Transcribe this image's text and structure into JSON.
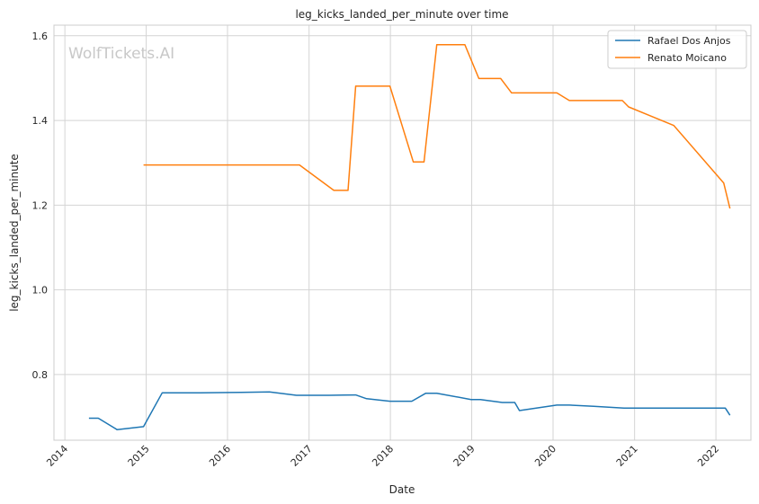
{
  "chart_data": {
    "type": "line",
    "title": "leg_kicks_landed_per_minute over time",
    "xlabel": "Date",
    "ylabel": "leg_kicks_landed_per_minute",
    "watermark": "WolfTickets.AI",
    "xlim": [
      "2013-11-13",
      "2022-06-07"
    ],
    "ylim": [
      0.645,
      1.625
    ],
    "xticks": [
      "2014",
      "2015",
      "2016",
      "2017",
      "2018",
      "2019",
      "2020",
      "2021",
      "2022"
    ],
    "yticks": [
      "0.8",
      "1.0",
      "1.2",
      "1.4",
      "1.6"
    ],
    "grid": true,
    "legend_position": "top-right",
    "series": [
      {
        "name": "Rafael Dos Anjos",
        "color": "#1f77b4",
        "points": [
          [
            "2014-04-19",
            0.697
          ],
          [
            "2014-05-31",
            0.697
          ],
          [
            "2014-08-23",
            0.67
          ],
          [
            "2014-12-20",
            0.677
          ],
          [
            "2015-03-14",
            0.757
          ],
          [
            "2015-09-01",
            0.757
          ],
          [
            "2016-03-01",
            0.758
          ],
          [
            "2016-07-07",
            0.759
          ],
          [
            "2016-11-05",
            0.751
          ],
          [
            "2017-04-01",
            0.751
          ],
          [
            "2017-07-29",
            0.752
          ],
          [
            "2017-09-16",
            0.743
          ],
          [
            "2017-12-30",
            0.737
          ],
          [
            "2018-04-07",
            0.737
          ],
          [
            "2018-06-09",
            0.756
          ],
          [
            "2018-07-28",
            0.756
          ],
          [
            "2018-12-29",
            0.741
          ],
          [
            "2019-02-09",
            0.741
          ],
          [
            "2019-05-18",
            0.734
          ],
          [
            "2019-07-13",
            0.734
          ],
          [
            "2019-08-03",
            0.715
          ],
          [
            "2020-01-18",
            0.728
          ],
          [
            "2020-03-14",
            0.728
          ],
          [
            "2020-07-01",
            0.725
          ],
          [
            "2020-11-14",
            0.721
          ],
          [
            "2021-06-01",
            0.721
          ],
          [
            "2022-02-12",
            0.721
          ],
          [
            "2022-03-05",
            0.704
          ]
        ]
      },
      {
        "name": "Renato Moicano",
        "color": "#ff7f0e",
        "points": [
          [
            "2014-12-20",
            1.295
          ],
          [
            "2016-11-19",
            1.295
          ],
          [
            "2017-04-22",
            1.235
          ],
          [
            "2017-06-25",
            1.235
          ],
          [
            "2017-07-29",
            1.481
          ],
          [
            "2017-12-30",
            1.481
          ],
          [
            "2018-04-14",
            1.302
          ],
          [
            "2018-06-01",
            1.302
          ],
          [
            "2018-07-28",
            1.579
          ],
          [
            "2018-12-01",
            1.579
          ],
          [
            "2019-02-02",
            1.499
          ],
          [
            "2019-05-11",
            1.499
          ],
          [
            "2019-06-29",
            1.465
          ],
          [
            "2020-01-18",
            1.465
          ],
          [
            "2020-03-14",
            1.447
          ],
          [
            "2020-11-07",
            1.447
          ],
          [
            "2020-12-05",
            1.432
          ],
          [
            "2021-06-26",
            1.388
          ],
          [
            "2022-02-05",
            1.252
          ],
          [
            "2022-03-05",
            1.192
          ]
        ]
      }
    ]
  }
}
